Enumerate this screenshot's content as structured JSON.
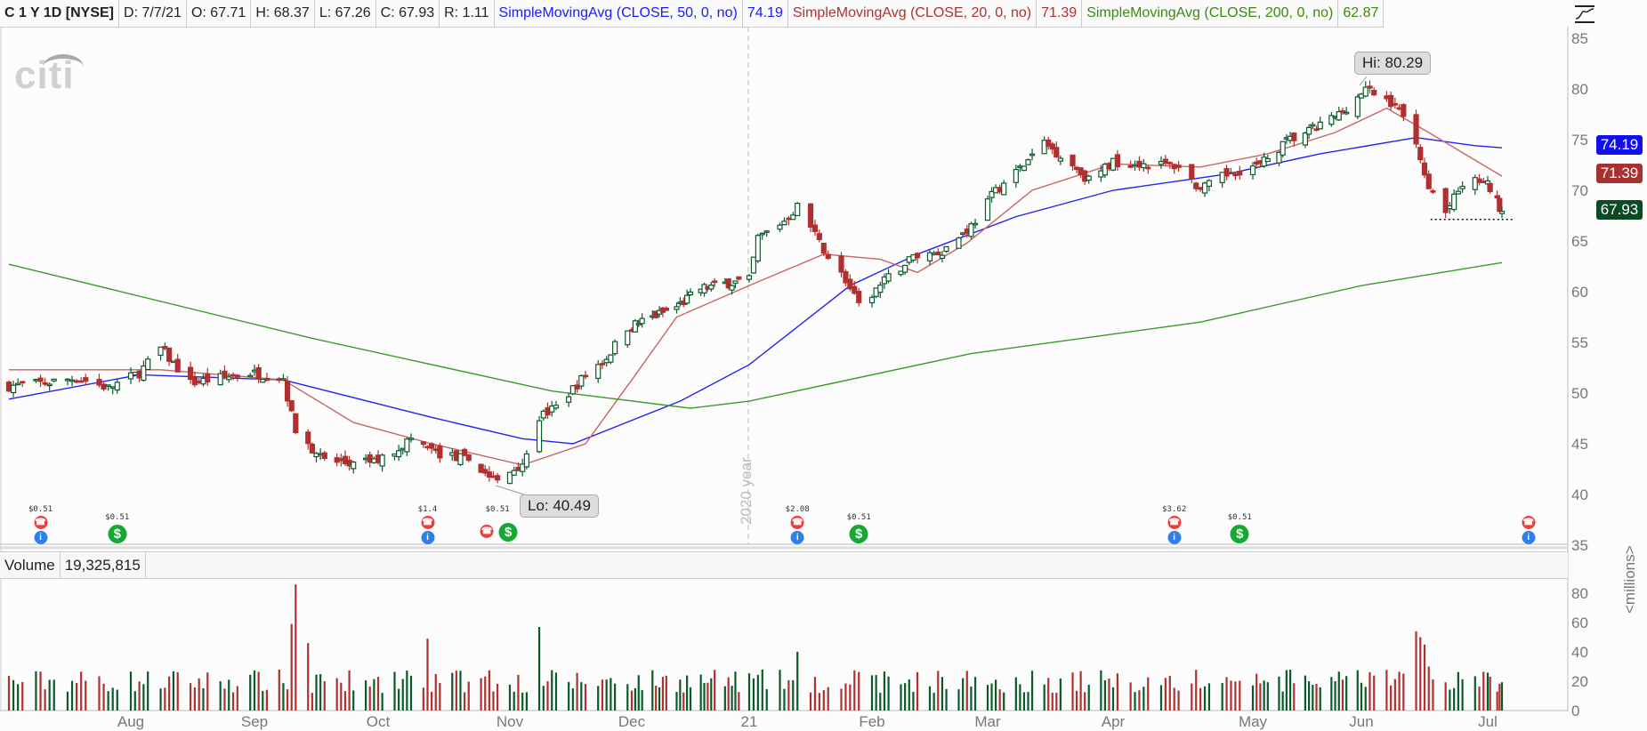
{
  "header": {
    "symbol": "C 1 Y 1D [NYSE]",
    "date": "D: 7/7/21",
    "open": "O: 67.71",
    "high": "H: 68.37",
    "low": "L: 67.26",
    "close": "C: 67.93",
    "range": "R: 1.11",
    "sma50_label": "SimpleMovingAvg (CLOSE, 50, 0, no)",
    "sma50_value": "74.19",
    "sma20_label": "SimpleMovingAvg (CLOSE, 20, 0, no)",
    "sma20_value": "71.39",
    "sma200_label": "SimpleMovingAvg (CLOSE, 200, 0, no)",
    "sma200_value": "62.87"
  },
  "logo": "citi",
  "volume_panel": {
    "label": "Volume",
    "value": "19,325,815",
    "unit_label": "<millions>"
  },
  "year_marker": "2020 year",
  "price_tags": {
    "sma50": "74.19",
    "sma20": "71.39",
    "close": "67.93"
  },
  "callouts": {
    "high": "Hi: 80.29",
    "low": "Lo: 40.49"
  },
  "colors": {
    "up": "#0b5a2a",
    "down": "#b03030",
    "sma50": "#2323f0",
    "sma20": "#c86464",
    "sma200": "#3a9a2a",
    "tag_close": "#0b4a22"
  },
  "events": [
    {
      "date": "2020-07-14",
      "label": "$0.51",
      "icons": [
        "earnings-phone",
        "info-bulb"
      ]
    },
    {
      "date": "2020-07-31",
      "label": "$0.51",
      "icons": [
        "dividend"
      ]
    },
    {
      "date": "2020-10-13",
      "label": "$1.4",
      "icons": [
        "earnings-phone",
        "info-bulb"
      ]
    },
    {
      "date": "2020-10-30",
      "label": "$0.51",
      "icons": [
        "earnings-phone",
        "dividend"
      ]
    },
    {
      "date": "2021-01-15",
      "label": "$2.08",
      "icons": [
        "earnings-phone",
        "info-bulb"
      ]
    },
    {
      "date": "2021-01-29",
      "label": "$0.51",
      "icons": [
        "dividend"
      ]
    },
    {
      "date": "2021-04-15",
      "label": "$3.62",
      "icons": [
        "earnings-phone",
        "info-bulb"
      ]
    },
    {
      "date": "2021-04-30",
      "label": "$0.51",
      "icons": [
        "dividend"
      ]
    },
    {
      "date": "2021-07-14",
      "label": "",
      "icons": [
        "earnings-phone",
        "info-bulb"
      ]
    }
  ],
  "chart_data": {
    "type": "candlestick",
    "title": "C 1 Y 1D [NYSE]",
    "price_axis": {
      "ticks": [
        85,
        80,
        75,
        70,
        65,
        60,
        55,
        50,
        45,
        40,
        35
      ],
      "range": [
        35,
        85
      ]
    },
    "volume_axis": {
      "ticks": [
        80,
        60,
        40,
        20,
        0
      ],
      "unit": "millions"
    },
    "x_ticks": [
      "Aug",
      "Sep",
      "Oct",
      "Nov",
      "Dec",
      "21",
      "Feb",
      "Mar",
      "Apr",
      "May",
      "Jun",
      "Jul"
    ],
    "last_bar": {
      "date": "2021-07-07",
      "open": 67.71,
      "high": 68.37,
      "low": 67.26,
      "close": 67.93,
      "volume": 19325815
    },
    "high": 80.29,
    "low": 40.49,
    "support_level": 67.3,
    "closes": [
      [
        "2020-07-07",
        50.7
      ],
      [
        "2020-07-15",
        51.0
      ],
      [
        "2020-07-22",
        51.5
      ],
      [
        "2020-07-29",
        50.5
      ],
      [
        "2020-08-05",
        52.0
      ],
      [
        "2020-08-10",
        54.4
      ],
      [
        "2020-08-17",
        51.0
      ],
      [
        "2020-08-24",
        51.5
      ],
      [
        "2020-08-31",
        52.0
      ],
      [
        "2020-09-08",
        51.5
      ],
      [
        "2020-09-11",
        46.0
      ],
      [
        "2020-09-18",
        43.4
      ],
      [
        "2020-09-25",
        42.9
      ],
      [
        "2020-10-02",
        43.5
      ],
      [
        "2020-10-09",
        45.5
      ],
      [
        "2020-10-16",
        44.0
      ],
      [
        "2020-10-23",
        43.4
      ],
      [
        "2020-10-30",
        41.2
      ],
      [
        "2020-11-06",
        43.5
      ],
      [
        "2020-11-09",
        47.6
      ],
      [
        "2020-11-13",
        48.6
      ],
      [
        "2020-11-20",
        51.8
      ],
      [
        "2020-11-25",
        53.5
      ],
      [
        "2020-11-30",
        56.5
      ],
      [
        "2020-12-07",
        57.5
      ],
      [
        "2020-12-14",
        58.5
      ],
      [
        "2020-12-21",
        60.3
      ],
      [
        "2020-12-28",
        60.8
      ],
      [
        "2021-01-04",
        61.1
      ],
      [
        "2021-01-06",
        65.3
      ],
      [
        "2021-01-12",
        67.0
      ],
      [
        "2021-01-15",
        68.4
      ],
      [
        "2021-01-20",
        64.8
      ],
      [
        "2021-01-26",
        61.1
      ],
      [
        "2021-01-29",
        58.5
      ],
      [
        "2021-02-04",
        61.0
      ],
      [
        "2021-02-11",
        63.5
      ],
      [
        "2021-02-18",
        64.0
      ],
      [
        "2021-02-25",
        66.5
      ],
      [
        "2021-03-03",
        70.0
      ],
      [
        "2021-03-10",
        72.5
      ],
      [
        "2021-03-15",
        74.7
      ],
      [
        "2021-03-22",
        72.5
      ],
      [
        "2021-03-26",
        71.0
      ],
      [
        "2021-04-01",
        72.8
      ],
      [
        "2021-04-09",
        72.6
      ],
      [
        "2021-04-16",
        72.4
      ],
      [
        "2021-04-21",
        70.0
      ],
      [
        "2021-04-28",
        71.8
      ],
      [
        "2021-05-05",
        72.5
      ],
      [
        "2021-05-12",
        74.8
      ],
      [
        "2021-05-19",
        76.0
      ],
      [
        "2021-05-26",
        77.5
      ],
      [
        "2021-06-02",
        79.9
      ],
      [
        "2021-06-09",
        78.5
      ],
      [
        "2021-06-14",
        75.0
      ],
      [
        "2021-06-17",
        70.5
      ],
      [
        "2021-06-21",
        67.8
      ],
      [
        "2021-06-25",
        70.5
      ],
      [
        "2021-06-29",
        71.0
      ],
      [
        "2021-07-02",
        70.2
      ],
      [
        "2021-07-07",
        67.93
      ]
    ],
    "volume_typical_millions": [
      12,
      28
    ],
    "volume_spikes_millions": [
      [
        "2020-09-10",
        59
      ],
      [
        "2020-09-11",
        86
      ],
      [
        "2020-09-14",
        46
      ],
      [
        "2020-10-13",
        49
      ],
      [
        "2020-11-09",
        57
      ],
      [
        "2021-01-15",
        40
      ],
      [
        "2021-06-14",
        54
      ],
      [
        "2021-06-15",
        50
      ],
      [
        "2021-06-16",
        45
      ],
      [
        "2021-06-17",
        30
      ]
    ],
    "series": [
      {
        "name": "SimpleMovingAvg (CLOSE, 50, 0, no)",
        "color": "#2323f0",
        "points": [
          [
            "2020-07-07",
            49.4
          ],
          [
            "2020-08-05",
            51.8
          ],
          [
            "2020-09-08",
            51.3
          ],
          [
            "2020-10-14",
            47.6
          ],
          [
            "2020-11-05",
            45.5
          ],
          [
            "2020-11-17",
            45.0
          ],
          [
            "2020-12-15",
            49.2
          ],
          [
            "2021-01-04",
            52.8
          ],
          [
            "2021-01-27",
            60.6
          ],
          [
            "2021-02-12",
            63.7
          ],
          [
            "2021-03-08",
            67.4
          ],
          [
            "2021-04-01",
            70.0
          ],
          [
            "2021-04-27",
            71.6
          ],
          [
            "2021-05-21",
            73.6
          ],
          [
            "2021-06-14",
            75.2
          ],
          [
            "2021-06-28",
            74.4
          ],
          [
            "2021-07-07",
            74.19
          ]
        ]
      },
      {
        "name": "SimpleMovingAvg (CLOSE, 20, 0, no)",
        "color": "#c86464",
        "points": [
          [
            "2020-07-07",
            52.3
          ],
          [
            "2020-08-10",
            52.3
          ],
          [
            "2020-09-08",
            51.3
          ],
          [
            "2020-09-25",
            47.1
          ],
          [
            "2020-10-14",
            45.0
          ],
          [
            "2020-11-05",
            42.9
          ],
          [
            "2020-11-20",
            45.0
          ],
          [
            "2020-12-01",
            51.3
          ],
          [
            "2020-12-14",
            57.5
          ],
          [
            "2021-01-04",
            60.6
          ],
          [
            "2021-01-21",
            63.7
          ],
          [
            "2021-02-03",
            63.2
          ],
          [
            "2021-02-12",
            61.9
          ],
          [
            "2021-02-24",
            64.8
          ],
          [
            "2021-03-12",
            70.0
          ],
          [
            "2021-04-01",
            72.6
          ],
          [
            "2021-04-21",
            72.3
          ],
          [
            "2021-05-07",
            73.6
          ],
          [
            "2021-05-25",
            75.7
          ],
          [
            "2021-06-07",
            78.1
          ],
          [
            "2021-06-17",
            75.7
          ],
          [
            "2021-07-07",
            71.39
          ]
        ]
      },
      {
        "name": "SimpleMovingAvg (CLOSE, 200, 0, no)",
        "color": "#3a9a2a",
        "points": [
          [
            "2020-07-07",
            62.7
          ],
          [
            "2020-09-15",
            55.4
          ],
          [
            "2020-11-12",
            50.2
          ],
          [
            "2020-12-18",
            48.5
          ],
          [
            "2021-01-04",
            49.2
          ],
          [
            "2021-02-25",
            53.9
          ],
          [
            "2021-04-21",
            57.0
          ],
          [
            "2021-06-01",
            60.6
          ],
          [
            "2021-07-07",
            62.87
          ]
        ]
      }
    ]
  }
}
